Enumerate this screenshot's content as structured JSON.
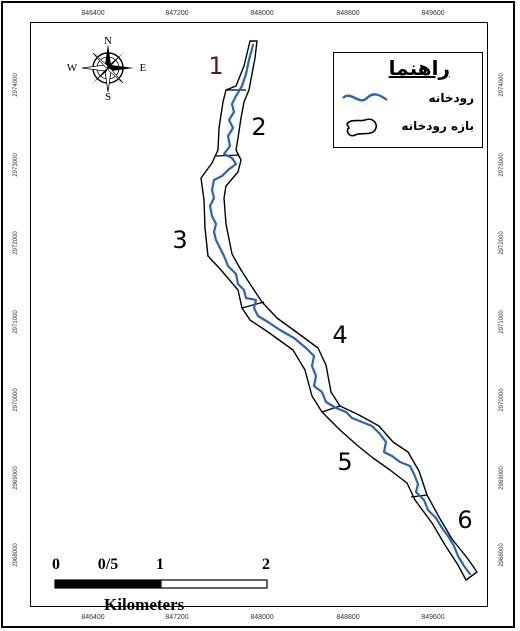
{
  "map": {
    "ticks_x": [
      "846400",
      "847200",
      "848000",
      "848800",
      "849600"
    ],
    "ticks_y": [
      "2974000",
      "2973000",
      "2972000",
      "2971000",
      "2970000",
      "2969000",
      "2968000"
    ],
    "reaches": [
      "1",
      "2",
      "3",
      "4",
      "5",
      "6"
    ]
  },
  "legend": {
    "title": "راهنما",
    "river": "رودخانه",
    "reach": "بازه رودخانه",
    "river_color": "#2b63b8"
  },
  "compass": {
    "n": "N",
    "s": "S",
    "e": "E",
    "w": "W"
  },
  "scale": {
    "labels": [
      "0",
      "0/5",
      "1",
      "2"
    ],
    "unit": "Kilometers"
  }
}
